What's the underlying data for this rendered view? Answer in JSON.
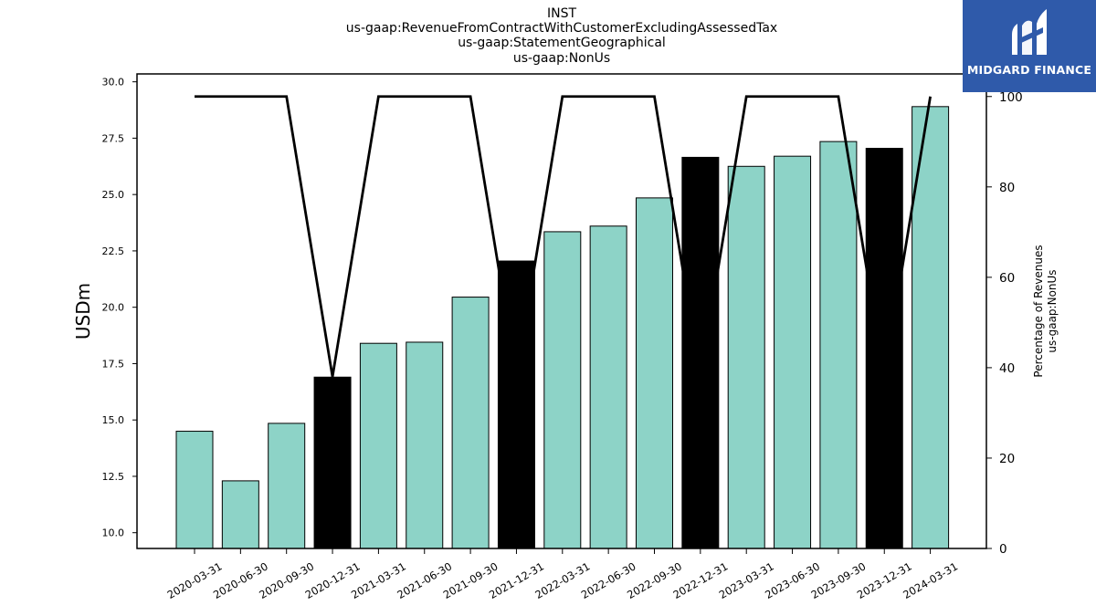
{
  "title_lines": [
    "INST",
    "us-gaap:RevenueFromContractWithCustomerExcludingAssessedTax",
    "us-gaap:StatementGeographical",
    "us-gaap:NonUs"
  ],
  "logo": {
    "text": "MIDGARD FINANCE",
    "color": "#2f5aaa"
  },
  "chart_data": {
    "type": "bar",
    "categories": [
      "2020-03-31",
      "2020-06-30",
      "2020-09-30",
      "2020-12-31",
      "2021-03-31",
      "2021-06-30",
      "2021-09-30",
      "2021-12-31",
      "2022-03-31",
      "2022-06-30",
      "2022-09-30",
      "2022-12-31",
      "2023-03-31",
      "2023-06-30",
      "2023-09-30",
      "2023-12-31",
      "2024-03-31"
    ],
    "series": [
      {
        "values": [
          14.5,
          12.3,
          14.85,
          16.9,
          18.4,
          18.45,
          20.45,
          22.05,
          23.35,
          23.6,
          24.85,
          26.65,
          26.25,
          26.7,
          27.35,
          27.05,
          28.9
        ],
        "axis": "left",
        "colors": [
          "#8dd3c7",
          "#8dd3c7",
          "#8dd3c7",
          "#000000",
          "#8dd3c7",
          "#8dd3c7",
          "#8dd3c7",
          "#000000",
          "#8dd3c7",
          "#8dd3c7",
          "#8dd3c7",
          "#000000",
          "#8dd3c7",
          "#8dd3c7",
          "#8dd3c7",
          "#000000",
          "#8dd3c7"
        ]
      },
      {
        "type": "line",
        "axis": "right",
        "color": "#000000",
        "values": [
          100,
          100,
          100,
          38,
          100,
          100,
          100,
          38,
          100,
          100,
          100,
          38,
          100,
          100,
          100,
          38,
          100
        ]
      }
    ],
    "ylabel": "USDm",
    "y2label_lines": [
      "Percentage of Revenues",
      "us-gaap:NonUs"
    ],
    "ylim": [
      9.3,
      30.35
    ],
    "y2lim": [
      0,
      100
    ],
    "yticks": [
      "10.0",
      "12.5",
      "15.0",
      "17.5",
      "20.0",
      "22.5",
      "25.0",
      "27.5",
      "30.0"
    ],
    "y2ticks": [
      "0",
      "20",
      "40",
      "60",
      "80",
      "100"
    ],
    "grid": false,
    "bar_color": "#8dd3c7",
    "highlight_color": "#000000"
  }
}
